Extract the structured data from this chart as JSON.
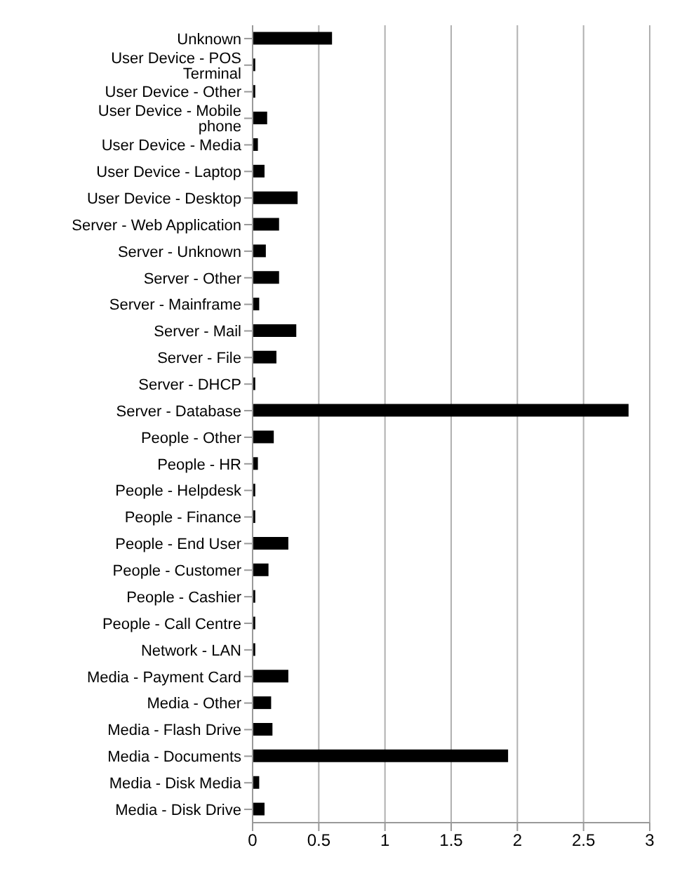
{
  "chart_data": {
    "type": "bar",
    "orientation": "horizontal",
    "categories": [
      "Unknown",
      "User Device - POS Terminal",
      "User Device - Other",
      "User Device - Mobile phone",
      "User Device - Media",
      "User Device - Laptop",
      "User Device - Desktop",
      "Server - Web Application",
      "Server - Unknown",
      "Server - Other",
      "Server - Mainframe",
      "Server - Mail",
      "Server - File",
      "Server - DHCP",
      "Server - Database",
      "People - Other",
      "People - HR",
      "People - Helpdesk",
      "People - Finance",
      "People - End User",
      "People - Customer",
      "People - Cashier",
      "People - Call Centre",
      "Network - LAN",
      "Media - Payment Card",
      "Media - Other",
      "Media - Flash Drive",
      "Media - Documents",
      "Media - Disk Media",
      "Media - Disk Drive"
    ],
    "values": [
      0.6,
      0.02,
      0.02,
      0.11,
      0.04,
      0.09,
      0.34,
      0.2,
      0.1,
      0.2,
      0.05,
      0.33,
      0.18,
      0.02,
      2.84,
      0.16,
      0.04,
      0.02,
      0.02,
      0.27,
      0.12,
      0.02,
      0.02,
      0.02,
      0.27,
      0.14,
      0.15,
      1.93,
      0.05,
      0.09
    ],
    "color": "#000000",
    "xlim": [
      0,
      3
    ],
    "xticks": [
      0,
      0.5,
      1,
      1.5,
      2,
      2.5,
      3
    ],
    "grid": "x"
  }
}
